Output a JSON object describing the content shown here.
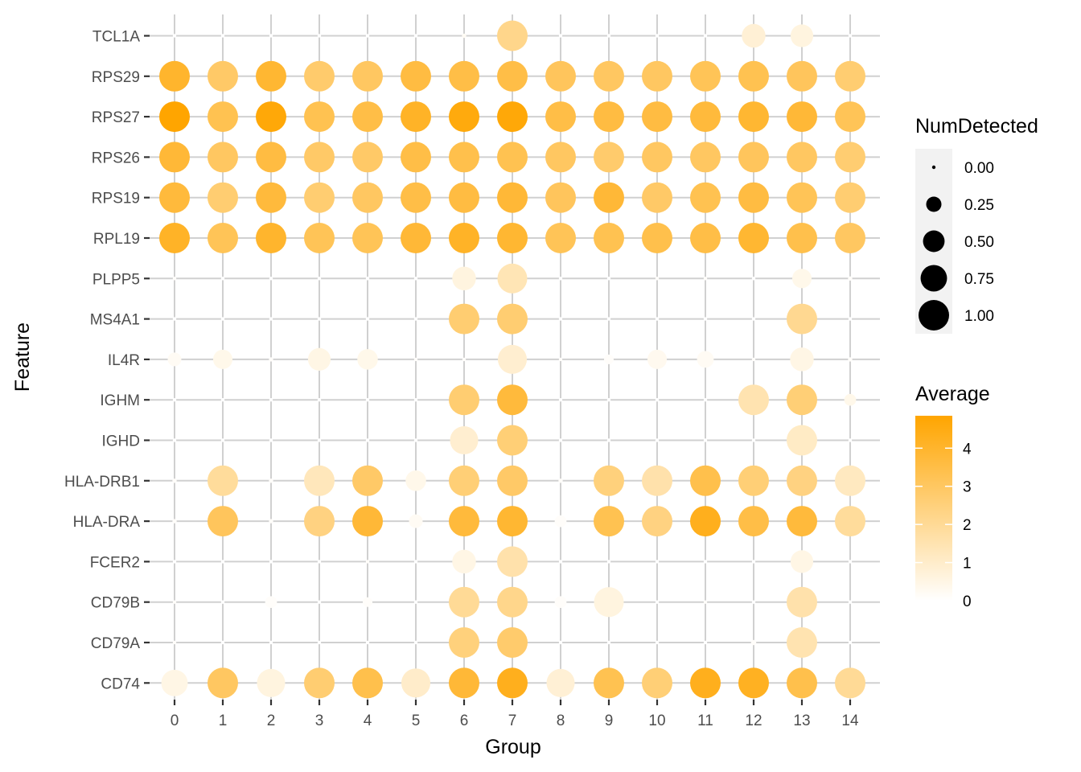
{
  "chart_data": {
    "type": "dot",
    "xlabel": "Group",
    "ylabel": "Feature",
    "groups": [
      "0",
      "1",
      "2",
      "3",
      "4",
      "5",
      "6",
      "7",
      "8",
      "9",
      "10",
      "11",
      "12",
      "13",
      "14"
    ],
    "features": [
      "TCL1A",
      "RPS29",
      "RPS27",
      "RPS26",
      "RPS19",
      "RPL19",
      "PLPP5",
      "MS4A1",
      "IL4R",
      "IGHM",
      "IGHD",
      "HLA-DRB1",
      "HLA-DRA",
      "FCER2",
      "CD79B",
      "CD79A",
      "CD74"
    ],
    "size_legend": {
      "title": "NumDetected",
      "breaks": [
        0.0,
        0.25,
        0.5,
        0.75,
        1.0
      ],
      "labels": [
        "0.00",
        "0.25",
        "0.50",
        "0.75",
        "1.00"
      ]
    },
    "color_legend": {
      "title": "Average",
      "range": [
        0,
        4.85
      ],
      "breaks": [
        0,
        1,
        2,
        3,
        4
      ],
      "labels": [
        "0",
        "1",
        "2",
        "3",
        "4"
      ],
      "low_color": "#ffffff",
      "high_color": "#ffa500"
    },
    "grid": true,
    "panel_background": "#ffffff",
    "grid_color": "#d0d0d0",
    "legend_position": "right",
    "num_detected": {
      "TCL1A": [
        0,
        0,
        0,
        0,
        0,
        0,
        0.02,
        1,
        0,
        0,
        0,
        0,
        0.6,
        0.55,
        0
      ],
      "RPS29": [
        1,
        1,
        1,
        1,
        1,
        1,
        1,
        1,
        1,
        1,
        1,
        1,
        1,
        1,
        1
      ],
      "RPS27": [
        1,
        1,
        1,
        1,
        1,
        1,
        1,
        1,
        1,
        1,
        1,
        1,
        1,
        1,
        1
      ],
      "RPS26": [
        1,
        1,
        1,
        1,
        1,
        1,
        1,
        1,
        1,
        1,
        1,
        1,
        1,
        1,
        1
      ],
      "RPS19": [
        1,
        1,
        1,
        1,
        1,
        1,
        1,
        1,
        1,
        1,
        1,
        1,
        1,
        1,
        1
      ],
      "RPL19": [
        1,
        1,
        1,
        1,
        1,
        1,
        1,
        1,
        1,
        1,
        1,
        1,
        1,
        1,
        1
      ],
      "PLPP5": [
        0.01,
        0,
        0,
        0,
        0,
        0,
        0.6,
        0.95,
        0,
        0,
        0.01,
        0.01,
        0,
        0.4,
        0.02
      ],
      "MS4A1": [
        0,
        0,
        0,
        0,
        0,
        0,
        1,
        1,
        0,
        0,
        0,
        0,
        0,
        1,
        0
      ],
      "IL4R": [
        0.2,
        0.4,
        0.02,
        0.55,
        0.45,
        0.01,
        0.01,
        0.9,
        0.01,
        0.1,
        0.4,
        0.3,
        0.01,
        0.6,
        0.02
      ],
      "IGHM": [
        0,
        0,
        0,
        0,
        0,
        0,
        1,
        1,
        0,
        0,
        0,
        0,
        1,
        1,
        0.15
      ],
      "IGHD": [
        0,
        0,
        0,
        0,
        0,
        0,
        0.85,
        1,
        0,
        0,
        0,
        0,
        0,
        1,
        0
      ],
      "HLA-DRB1": [
        0.02,
        1,
        0.02,
        1,
        1,
        0.45,
        1,
        1,
        0.02,
        1,
        1,
        1,
        1,
        1,
        1
      ],
      "HLA-DRA": [
        0.02,
        1,
        0.02,
        1,
        1,
        0.2,
        1,
        1,
        0.15,
        1,
        1,
        1,
        1,
        1,
        1
      ],
      "FCER2": [
        0,
        0,
        0,
        0,
        0.01,
        0,
        0.6,
        1,
        0,
        0,
        0,
        0,
        0,
        0.55,
        0
      ],
      "CD79B": [
        0.01,
        0,
        0.15,
        0,
        0.1,
        0,
        1,
        1,
        0.15,
        0.95,
        0,
        0.01,
        0,
        1,
        0
      ],
      "CD79A": [
        0.01,
        0,
        0,
        0,
        0,
        0,
        1,
        1,
        0,
        0,
        0,
        0,
        0.03,
        1,
        0
      ],
      "CD74": [
        0.75,
        1,
        0.85,
        1,
        1,
        0.9,
        1,
        1,
        0.85,
        1,
        1,
        1,
        1,
        1,
        1
      ]
    },
    "average": {
      "TCL1A": [
        0,
        0,
        0,
        0,
        0,
        0,
        0.2,
        2.2,
        0,
        0,
        0,
        0,
        0.8,
        0.6,
        0
      ],
      "RPS29": [
        4.0,
        2.9,
        3.9,
        2.8,
        3.0,
        3.6,
        3.5,
        3.5,
        3.1,
        3.0,
        3.0,
        3.2,
        3.3,
        3.1,
        2.7
      ],
      "RPS27": [
        4.85,
        3.3,
        4.7,
        3.3,
        3.5,
        4.1,
        4.6,
        4.7,
        3.5,
        3.6,
        3.6,
        3.7,
        3.9,
        3.8,
        3.2
      ],
      "RPS26": [
        3.8,
        3.0,
        3.6,
        2.9,
        2.9,
        3.5,
        3.4,
        3.3,
        3.0,
        2.8,
        3.0,
        3.0,
        3.1,
        3.0,
        2.7
      ],
      "RPS19": [
        3.7,
        2.7,
        3.7,
        2.7,
        3.0,
        3.5,
        3.6,
        3.8,
        3.1,
        3.8,
        2.9,
        3.3,
        3.6,
        3.2,
        2.7
      ],
      "RPL19": [
        4.1,
        3.2,
        4.0,
        3.2,
        3.2,
        3.8,
        4.1,
        3.9,
        3.2,
        3.3,
        3.4,
        3.5,
        3.9,
        3.4,
        3.0
      ],
      "PLPP5": [
        0.1,
        0,
        0,
        0,
        0,
        0,
        0.6,
        1.4,
        0,
        0,
        0.1,
        0.1,
        0,
        0.4,
        0.1
      ],
      "MS4A1": [
        0,
        0,
        0,
        0,
        0,
        0,
        2.7,
        2.7,
        0,
        0,
        0,
        0,
        0,
        2.1,
        0
      ],
      "IL4R": [
        0.2,
        0.4,
        0.1,
        0.5,
        0.4,
        0.1,
        0.1,
        0.9,
        0.1,
        0.1,
        0.3,
        0.2,
        0.1,
        0.5,
        0.1
      ],
      "IGHM": [
        0,
        0,
        0,
        0,
        0,
        0,
        2.7,
        3.7,
        0,
        0,
        0,
        0,
        1.5,
        2.6,
        0.4
      ],
      "IGHD": [
        0,
        0,
        0,
        0,
        0,
        0,
        0.9,
        2.6,
        0,
        0,
        0,
        0,
        0,
        1.1,
        0
      ],
      "HLA-DRB1": [
        0.1,
        1.9,
        0.1,
        1.3,
        2.9,
        0.4,
        2.6,
        2.9,
        0.1,
        2.5,
        1.6,
        3.4,
        2.6,
        2.4,
        1.2
      ],
      "HLA-DRA": [
        0.1,
        3.1,
        0.1,
        2.4,
        3.8,
        0.2,
        3.7,
        3.9,
        0.1,
        3.3,
        2.4,
        4.3,
        3.5,
        3.7,
        1.9
      ],
      "FCER2": [
        0,
        0,
        0,
        0,
        0.1,
        0,
        0.5,
        1.6,
        0,
        0,
        0,
        0,
        0,
        0.5,
        0
      ],
      "CD79B": [
        0.1,
        0,
        0.1,
        0,
        0.1,
        0,
        2.0,
        2.2,
        0.1,
        0.6,
        0,
        0.1,
        0,
        1.6,
        0
      ],
      "CD79A": [
        0.1,
        0,
        0,
        0,
        0,
        0,
        2.5,
        2.8,
        0,
        0,
        0,
        0,
        0.1,
        1.5,
        0
      ],
      "CD74": [
        0.5,
        3.0,
        0.6,
        2.7,
        3.4,
        1.0,
        3.8,
        4.3,
        0.8,
        3.3,
        2.6,
        4.3,
        4.2,
        3.4,
        2.0
      ]
    }
  }
}
